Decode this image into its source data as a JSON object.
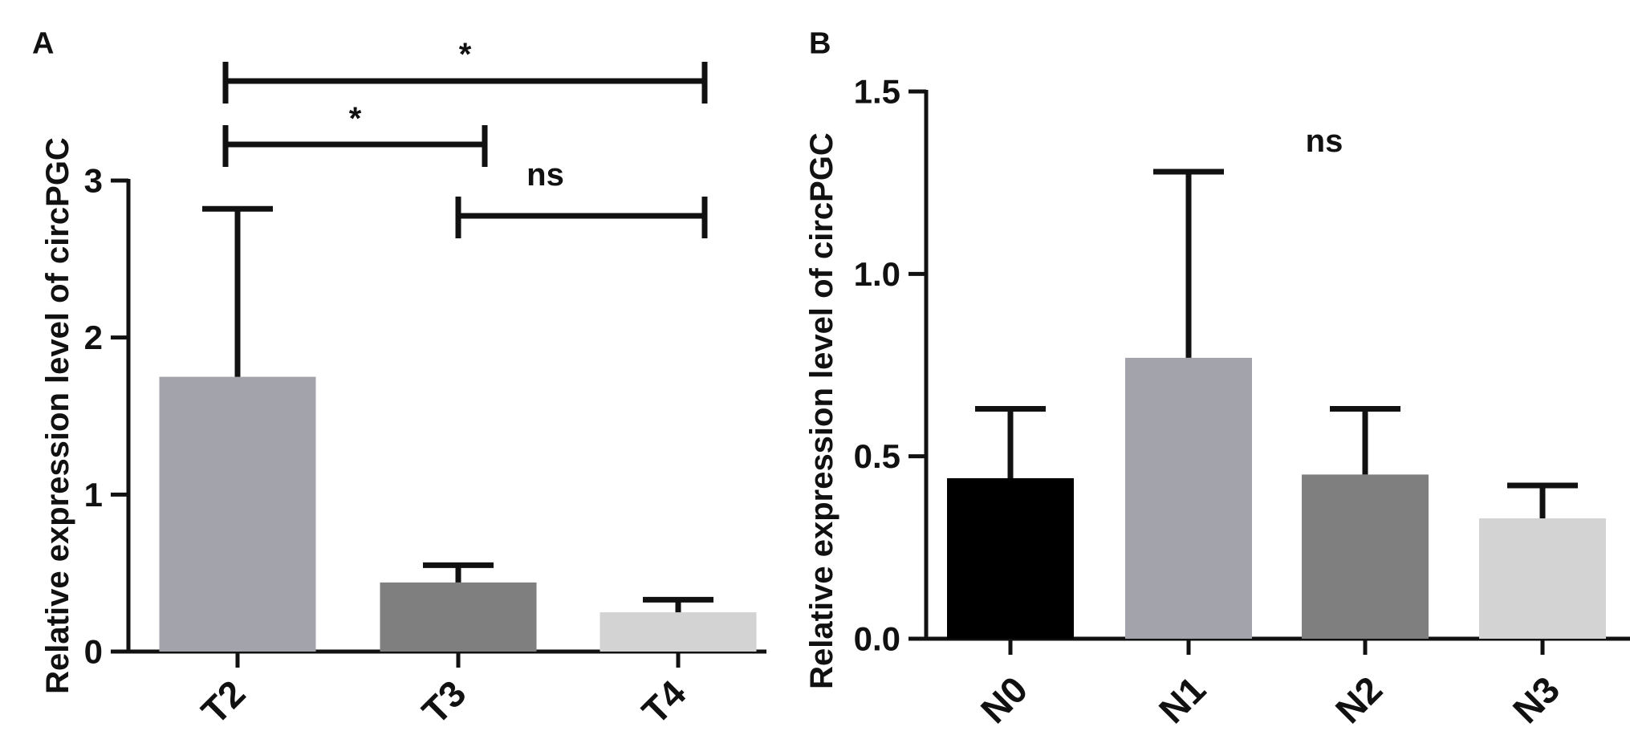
{
  "chart_data": [
    {
      "panel": "A",
      "type": "bar",
      "categories": [
        "T2",
        "T3",
        "T4"
      ],
      "values": [
        1.75,
        0.44,
        0.25
      ],
      "errors": [
        1.07,
        0.11,
        0.08
      ],
      "colors": [
        "#a3a3ab",
        "#7f7f7f",
        "#d3d3d3"
      ],
      "ylabel": "Relative expression level of circPGC",
      "ylim": [
        0,
        3
      ],
      "yticks": [
        "0",
        "1",
        "2",
        "3"
      ],
      "grid": false,
      "legend": "none",
      "comparisons": [
        {
          "from": "T2",
          "to": "T4",
          "label": "*"
        },
        {
          "from": "T2",
          "to": "T3",
          "label": "*"
        },
        {
          "from": "T3",
          "to": "T4",
          "label": "ns"
        }
      ]
    },
    {
      "panel": "B",
      "type": "bar",
      "categories": [
        "N0",
        "N1",
        "N2",
        "N3"
      ],
      "values": [
        0.44,
        0.77,
        0.45,
        0.33
      ],
      "errors": [
        0.19,
        0.51,
        0.18,
        0.09
      ],
      "colors": [
        "#000000",
        "#a3a3ab",
        "#7f7f7f",
        "#d3d3d3"
      ],
      "ylabel": "Relative expression level of circPGC",
      "ylim": [
        0,
        1.5
      ],
      "yticks": [
        "0.0",
        "0.5",
        "1.0",
        "1.5"
      ],
      "grid": false,
      "legend": "none",
      "annotation": "ns"
    }
  ]
}
